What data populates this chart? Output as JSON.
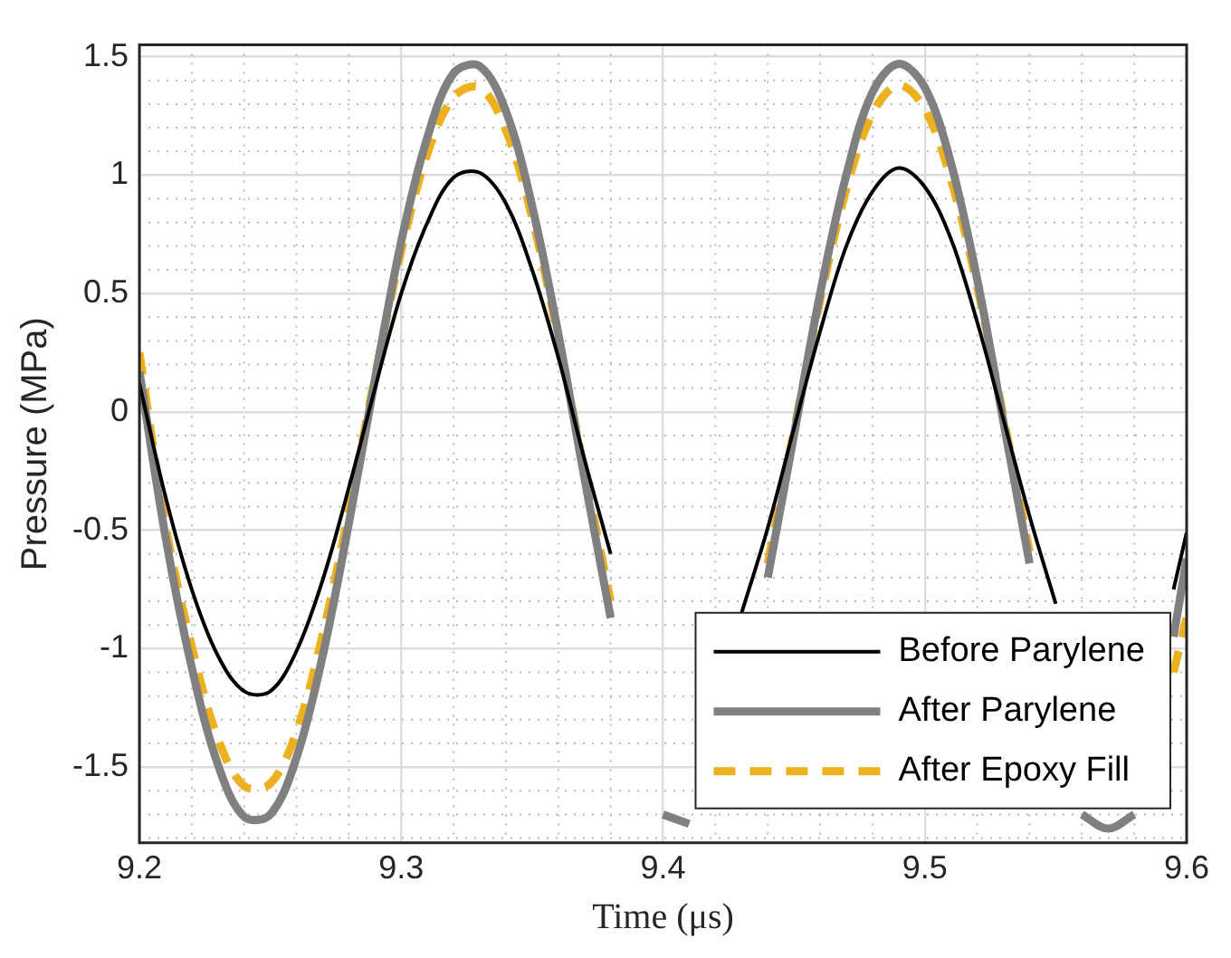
{
  "chart_data": {
    "type": "line",
    "xlabel": "Time (μs)",
    "ylabel": "Pressure (MPa)",
    "x": [
      9.2,
      9.21,
      9.22,
      9.23,
      9.24,
      9.25,
      9.26,
      9.27,
      9.28,
      9.29,
      9.3,
      9.31,
      9.32,
      9.33,
      9.34,
      9.35,
      9.36,
      9.37,
      9.38,
      9.39,
      9.4,
      9.41,
      9.42,
      9.43,
      9.44,
      9.45,
      9.46,
      9.47,
      9.48,
      9.49,
      9.5,
      9.51,
      9.52,
      9.53,
      9.54,
      9.55,
      9.56,
      9.57,
      9.58,
      9.59,
      9.595,
      9.6
    ],
    "series": [
      {
        "name": "Before Parylene",
        "color": "#000000",
        "line_style": "solid",
        "values": [
          0.12,
          -0.36,
          -0.75,
          -1.03,
          -1.18,
          -1.18,
          -1.01,
          -0.71,
          -0.32,
          0.1,
          0.5,
          0.8,
          0.99,
          1.01,
          0.88,
          0.6,
          0.23,
          -0.2,
          -0.6,
          null,
          null,
          null,
          null,
          -0.85,
          -0.49,
          -0.07,
          0.34,
          0.7,
          0.93,
          1.03,
          0.95,
          0.73,
          0.38,
          -0.03,
          -0.44,
          -0.81,
          null,
          null,
          null,
          null,
          -0.75,
          -0.51
        ]
      },
      {
        "name": "After Parylene",
        "color": "#808080",
        "line_style": "solid",
        "values": [
          0.17,
          -0.53,
          -1.08,
          -1.49,
          -1.71,
          -1.7,
          -1.46,
          -1.03,
          -0.47,
          0.14,
          0.72,
          1.16,
          1.43,
          1.46,
          1.27,
          0.87,
          0.33,
          -0.28,
          -0.87,
          null,
          -1.7,
          -1.74,
          null,
          null,
          -0.7,
          -0.1,
          0.5,
          1.0,
          1.35,
          1.47,
          1.37,
          1.05,
          0.56,
          -0.04,
          -0.64,
          null,
          -1.7,
          -1.76,
          -1.7,
          null,
          -0.95,
          -0.62
        ]
      },
      {
        "name": "After Epoxy Fill",
        "color": "#edb120",
        "line_style": "dashed",
        "values": [
          0.25,
          -0.48,
          -0.99,
          -1.38,
          -1.58,
          -1.57,
          -1.35,
          -0.94,
          -0.42,
          0.15,
          0.68,
          1.09,
          1.33,
          1.37,
          1.19,
          0.82,
          0.31,
          -0.25,
          -0.8,
          null,
          null,
          null,
          null,
          null,
          -0.64,
          -0.08,
          0.47,
          0.94,
          1.26,
          1.38,
          1.28,
          0.98,
          0.53,
          -0.02,
          -0.59,
          null,
          null,
          null,
          null,
          null,
          -1.1,
          -0.87
        ]
      }
    ],
    "xlim": [
      9.2,
      9.6
    ],
    "xticks": [
      9.2,
      9.3,
      9.4,
      9.5,
      9.6
    ],
    "ylim": [
      -1.82,
      1.55
    ],
    "yticks": [
      -1.5,
      -1,
      -0.5,
      0,
      0.5,
      1,
      1.5
    ],
    "grid": true,
    "legend": "bottom right",
    "marker": "none"
  }
}
